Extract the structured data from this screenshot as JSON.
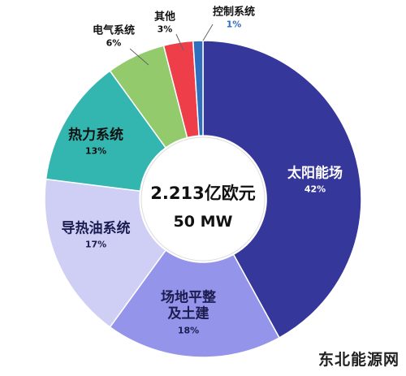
{
  "chart_data": {
    "type": "donut",
    "categories": [
      "太阳能场",
      "场地平整\n及土建",
      "导热油系统",
      "热力系统",
      "电气系统",
      "其他",
      "控制系统"
    ],
    "values": [
      42,
      18,
      17,
      13,
      6,
      3,
      1
    ],
    "value_labels": [
      "42%",
      "18%",
      "17%",
      "13%",
      "6%",
      "3%",
      "1%"
    ],
    "colors": [
      "#35379b",
      "#9494ea",
      "#cfcff6",
      "#34b6b0",
      "#92ca6c",
      "#ee3e4a",
      "#2f6fbe"
    ],
    "center_text": [
      "2.213亿欧元",
      "50 MW"
    ]
  },
  "watermark": "东北能源网"
}
